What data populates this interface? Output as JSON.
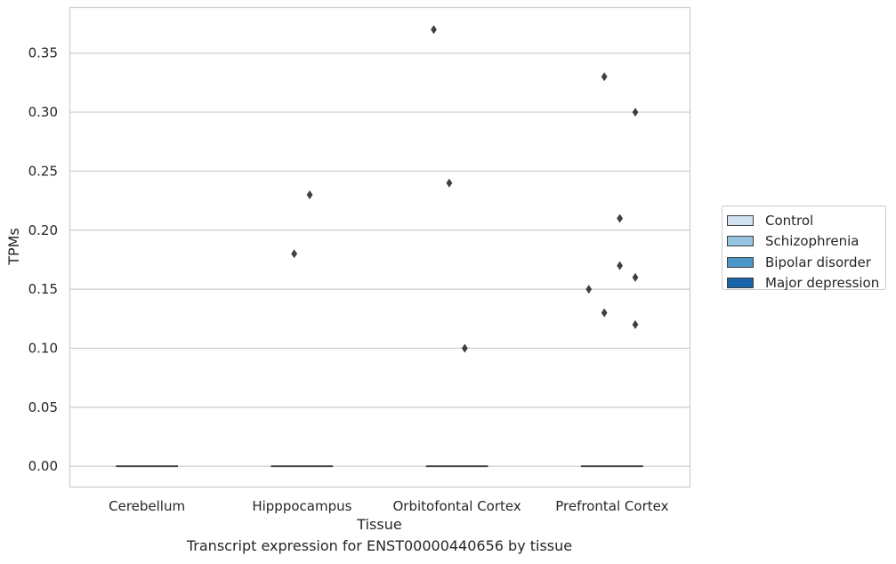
{
  "chart_data": {
    "type": "box",
    "xlabel": "Tissue",
    "ylabel": "TPMs",
    "caption": "Transcript expression for ENST00000440656 by tissue",
    "categories": [
      "Cerebellum",
      "Hipppocampus",
      "Orbitofontal Cortex",
      "Prefrontal Cortex"
    ],
    "ylim": [
      -0.018,
      0.389
    ],
    "yticks": [
      "0.00",
      "0.05",
      "0.10",
      "0.15",
      "0.20",
      "0.25",
      "0.30",
      "0.35"
    ],
    "ytick_values": [
      0,
      0.05,
      0.1,
      0.15,
      0.2,
      0.25,
      0.3,
      0.35
    ],
    "grid": true,
    "legend_position": "right",
    "series": [
      {
        "name": "Control",
        "color": "#d0e1f2",
        "medians": [
          0,
          0,
          0,
          0
        ],
        "outliers": [
          [],
          [],
          [
            0.37
          ],
          [
            0.15
          ]
        ]
      },
      {
        "name": "Schizophrenia",
        "color": "#94c4df",
        "medians": [
          0,
          0,
          0,
          0
        ],
        "outliers": [
          [],
          [
            0.18
          ],
          [
            0.24
          ],
          [
            0.33,
            0.13
          ]
        ]
      },
      {
        "name": "Bipolar disorder",
        "color": "#4a98c9",
        "medians": [
          0,
          0,
          0,
          0
        ],
        "outliers": [
          [],
          [
            0.23
          ],
          [
            0.1
          ],
          [
            0.21,
            0.17
          ]
        ]
      },
      {
        "name": "Major depression",
        "color": "#1764ab",
        "medians": [
          0,
          0,
          0,
          0
        ],
        "outliers": [
          [],
          [],
          [],
          [
            0.3,
            0.16,
            0.12
          ]
        ]
      }
    ]
  }
}
